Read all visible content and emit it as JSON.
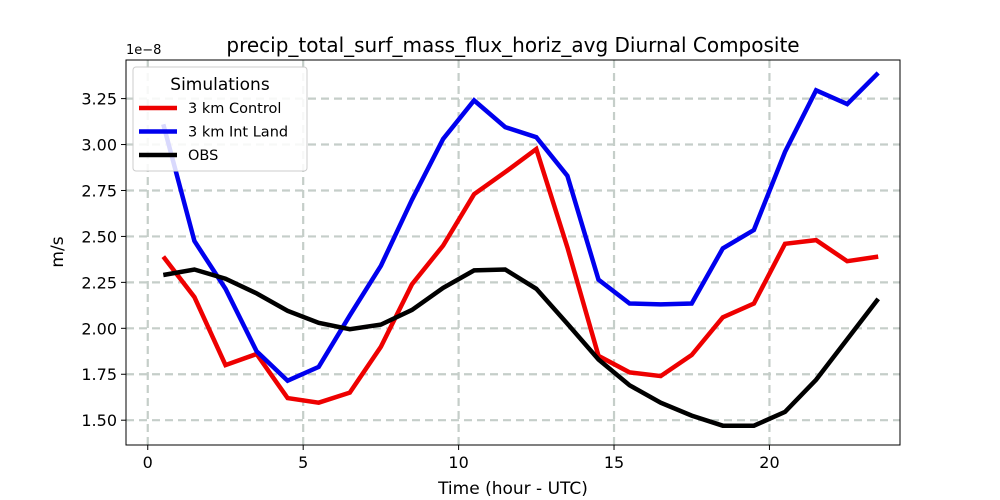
{
  "chart_data": {
    "type": "line",
    "title": "precip_total_surf_mass_flux_horiz_avg Diurnal Composite",
    "xlabel": "Time (hour - UTC)",
    "ylabel": "m/s",
    "y_offset_label": "1e−8",
    "xlim": [
      -0.7,
      24.2
    ],
    "ylim": [
      1.365,
      3.46
    ],
    "xticks": [
      0,
      5,
      10,
      15,
      20
    ],
    "yticks": [
      1.5,
      1.75,
      2.0,
      2.25,
      2.5,
      2.75,
      3.0,
      3.25
    ],
    "ytick_labels": [
      "1.50",
      "1.75",
      "2.00",
      "2.25",
      "2.50",
      "2.75",
      "3.00",
      "3.25"
    ],
    "grid": true,
    "legend": {
      "title": "Simulations",
      "placement": "top-left"
    },
    "x": [
      0.5,
      1.5,
      2.5,
      3.5,
      4.5,
      5.5,
      6.5,
      7.5,
      8.5,
      9.5,
      10.5,
      11.5,
      12.5,
      13.5,
      14.5,
      15.5,
      16.5,
      17.5,
      18.5,
      19.5,
      20.5,
      21.5,
      22.5,
      23.5
    ],
    "series": [
      {
        "name": "3 km Control",
        "color": "#ee0000",
        "values": [
          2.39,
          2.17,
          1.8,
          1.86,
          1.62,
          1.595,
          1.65,
          1.9,
          2.24,
          2.45,
          2.73,
          2.85,
          2.975,
          2.44,
          1.85,
          1.76,
          1.74,
          1.855,
          2.06,
          2.135,
          2.46,
          2.48,
          2.365,
          2.39
        ]
      },
      {
        "name": "3 km Int Land",
        "color": "#0000ee",
        "values": [
          3.11,
          2.475,
          2.215,
          1.875,
          1.715,
          1.79,
          2.07,
          2.34,
          2.7,
          3.03,
          3.24,
          3.095,
          3.04,
          2.83,
          2.265,
          2.135,
          2.13,
          2.135,
          2.435,
          2.535,
          2.96,
          3.295,
          3.22,
          3.39
        ]
      },
      {
        "name": "OBS",
        "color": "#000000",
        "values": [
          2.29,
          2.32,
          2.27,
          2.19,
          2.095,
          2.03,
          1.995,
          2.02,
          2.1,
          2.22,
          2.315,
          2.32,
          2.215,
          2.025,
          1.83,
          1.69,
          1.595,
          1.525,
          1.47,
          1.47,
          1.545,
          1.72,
          1.94,
          2.16
        ]
      }
    ]
  }
}
